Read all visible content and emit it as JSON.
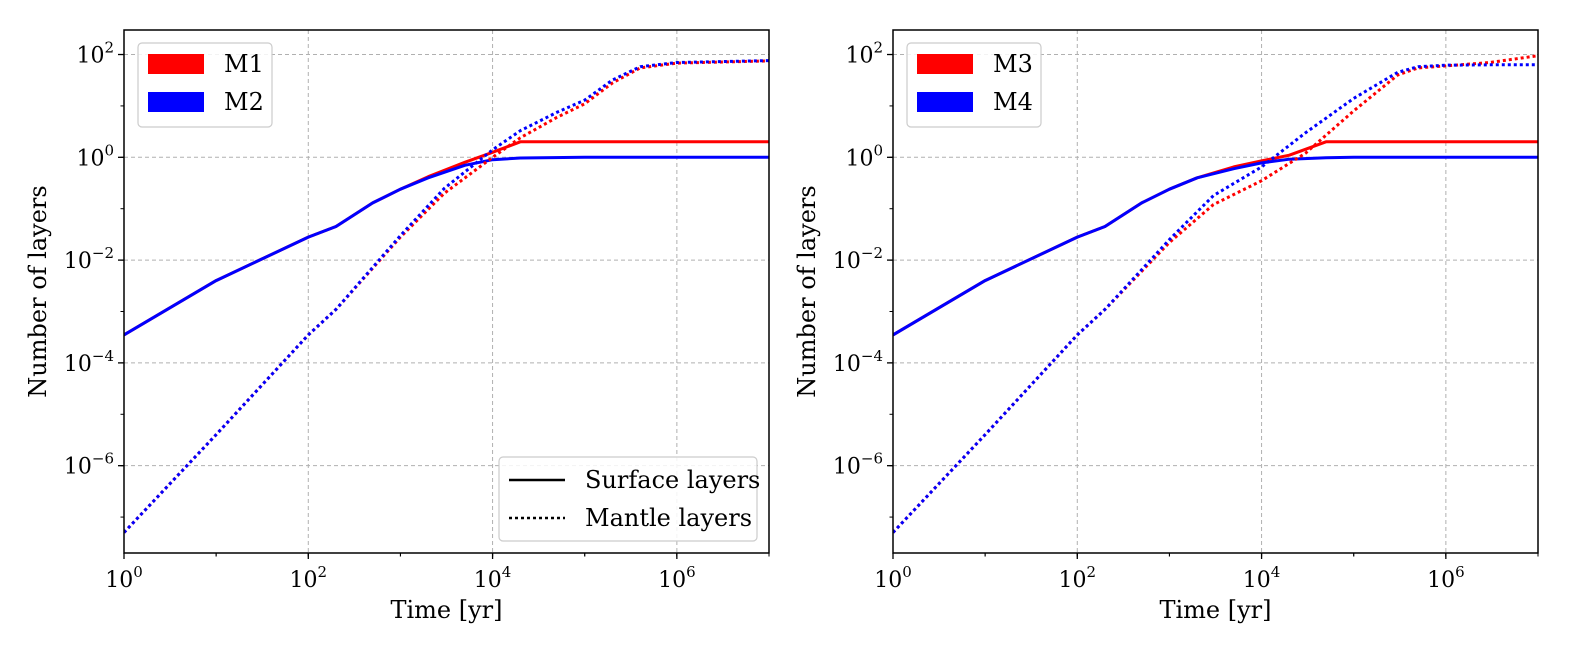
{
  "chart_data": [
    {
      "type": "line",
      "panel": "left",
      "xlabel": "Time [yr]",
      "ylabel": "Number of layers",
      "xscale": "log",
      "yscale": "log",
      "xlim": [
        1,
        10000000
      ],
      "ylim": [
        2e-08,
        300
      ],
      "grid": true,
      "xticks": [
        {
          "base": "10",
          "exp": "0",
          "value": 1
        },
        {
          "base": "10",
          "exp": "2",
          "value": 100
        },
        {
          "base": "10",
          "exp": "4",
          "value": 10000
        },
        {
          "base": "10",
          "exp": "6",
          "value": 1000000
        }
      ],
      "yticks": [
        {
          "base": "10",
          "exp": "−6",
          "value": 1e-06
        },
        {
          "base": "10",
          "exp": "−4",
          "value": 0.0001
        },
        {
          "base": "10",
          "exp": "−2",
          "value": 0.01
        },
        {
          "base": "10",
          "exp": "0",
          "value": 1
        },
        {
          "base": "10",
          "exp": "2",
          "value": 100
        }
      ],
      "legend_models": {
        "position": "upper-left",
        "entries": [
          {
            "label": "M1",
            "color": "#ff0000"
          },
          {
            "label": "M2",
            "color": "#0000ff"
          }
        ]
      },
      "legend_styles": {
        "position": "lower-right",
        "entries": [
          {
            "label": "Surface layers",
            "style": "solid"
          },
          {
            "label": "Mantle layers",
            "style": "dotted"
          }
        ]
      },
      "series": [
        {
          "name": "M1 Surface layers",
          "color": "#ff0000",
          "style": "solid",
          "x": [
            1,
            10,
            100,
            200,
            500,
            1000,
            2000,
            5000,
            10000,
            20000,
            100000,
            1000000,
            10000000
          ],
          "y": [
            0.00035,
            0.004,
            0.028,
            0.045,
            0.13,
            0.24,
            0.42,
            0.8,
            1.25,
            2.0,
            2.0,
            2.0,
            2.0
          ]
        },
        {
          "name": "M2 Surface layers",
          "color": "#0000ff",
          "style": "solid",
          "x": [
            1,
            10,
            100,
            200,
            500,
            1000,
            2000,
            5000,
            10000,
            20000,
            100000,
            1000000,
            10000000
          ],
          "y": [
            0.00035,
            0.004,
            0.028,
            0.045,
            0.13,
            0.24,
            0.4,
            0.7,
            0.9,
            0.97,
            1.0,
            1.0,
            1.0
          ]
        },
        {
          "name": "M1 Mantle layers",
          "color": "#ff0000",
          "style": "dotted",
          "x": [
            1,
            10,
            100,
            200,
            1000,
            3000,
            10000,
            20000,
            50000,
            100000,
            200000,
            400000,
            1000000,
            10000000
          ],
          "y": [
            5e-08,
            4e-06,
            0.00035,
            0.0011,
            0.028,
            0.2,
            1.0,
            2.4,
            6.0,
            11.0,
            28.0,
            55.0,
            68.0,
            75.0
          ]
        },
        {
          "name": "M2 Mantle layers",
          "color": "#0000ff",
          "style": "dotted",
          "x": [
            1,
            10,
            100,
            200,
            1000,
            3000,
            10000,
            20000,
            50000,
            100000,
            200000,
            400000,
            1000000,
            10000000
          ],
          "y": [
            5e-08,
            4e-06,
            0.00035,
            0.0011,
            0.03,
            0.25,
            1.4,
            3.3,
            7.5,
            13.0,
            32.0,
            58.0,
            70.0,
            76.0
          ]
        }
      ]
    },
    {
      "type": "line",
      "panel": "right",
      "xlabel": "Time [yr]",
      "ylabel": "Number of layers",
      "xscale": "log",
      "yscale": "log",
      "xlim": [
        1,
        10000000
      ],
      "ylim": [
        2e-08,
        300
      ],
      "grid": true,
      "xticks": [
        {
          "base": "10",
          "exp": "0",
          "value": 1
        },
        {
          "base": "10",
          "exp": "2",
          "value": 100
        },
        {
          "base": "10",
          "exp": "4",
          "value": 10000
        },
        {
          "base": "10",
          "exp": "6",
          "value": 1000000
        }
      ],
      "yticks": [
        {
          "base": "10",
          "exp": "−6",
          "value": 1e-06
        },
        {
          "base": "10",
          "exp": "−4",
          "value": 0.0001
        },
        {
          "base": "10",
          "exp": "−2",
          "value": 0.01
        },
        {
          "base": "10",
          "exp": "0",
          "value": 1
        },
        {
          "base": "10",
          "exp": "2",
          "value": 100
        }
      ],
      "legend_models": {
        "position": "upper-left",
        "entries": [
          {
            "label": "M3",
            "color": "#ff0000"
          },
          {
            "label": "M4",
            "color": "#0000ff"
          }
        ]
      },
      "series": [
        {
          "name": "M3 Surface layers",
          "color": "#ff0000",
          "style": "solid",
          "x": [
            1,
            10,
            100,
            200,
            500,
            1000,
            2000,
            5000,
            10000,
            20000,
            50000,
            100000,
            1000000,
            10000000
          ],
          "y": [
            0.00035,
            0.004,
            0.028,
            0.045,
            0.13,
            0.24,
            0.4,
            0.65,
            0.85,
            1.1,
            2.0,
            2.0,
            2.0,
            2.0
          ]
        },
        {
          "name": "M4 Surface layers",
          "color": "#0000ff",
          "style": "solid",
          "x": [
            1,
            10,
            100,
            200,
            500,
            1000,
            2000,
            5000,
            10000,
            20000,
            50000,
            100000,
            1000000,
            10000000
          ],
          "y": [
            0.00035,
            0.004,
            0.028,
            0.045,
            0.13,
            0.24,
            0.4,
            0.6,
            0.78,
            0.92,
            0.98,
            1.0,
            1.0,
            1.0
          ]
        },
        {
          "name": "M3 Mantle layers",
          "color": "#ff0000",
          "style": "dotted",
          "x": [
            1,
            10,
            100,
            200,
            1000,
            3000,
            10000,
            30000,
            100000,
            300000,
            500000,
            1000000,
            3000000,
            10000000
          ],
          "y": [
            5e-08,
            4e-06,
            0.00035,
            0.0011,
            0.022,
            0.12,
            0.35,
            1.2,
            8.0,
            40.0,
            55.0,
            60.0,
            70.0,
            95.0
          ]
        },
        {
          "name": "M4 Mantle layers",
          "color": "#0000ff",
          "style": "dotted",
          "x": [
            1,
            10,
            100,
            200,
            1000,
            3000,
            10000,
            30000,
            100000,
            300000,
            500000,
            1000000,
            3000000,
            10000000
          ],
          "y": [
            5e-08,
            4e-06,
            0.00035,
            0.0011,
            0.025,
            0.18,
            0.65,
            3.0,
            14.0,
            45.0,
            58.0,
            62.0,
            63.0,
            63.0
          ]
        }
      ]
    }
  ]
}
